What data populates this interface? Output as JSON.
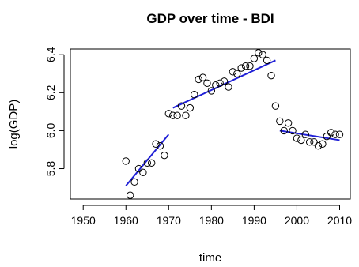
{
  "chart_data": {
    "type": "scatter",
    "title": "GDP over time - BDI",
    "xlabel": "time",
    "ylabel": "log(GDP)",
    "xlim": [
      1947,
      2012.5
    ],
    "ylim": [
      5.64,
      6.43
    ],
    "xticks": [
      1950,
      1960,
      1970,
      1980,
      1990,
      2000,
      2010
    ],
    "yticks": [
      5.8,
      6.0,
      6.2,
      6.4
    ],
    "grid": false,
    "legend": "none",
    "points": [
      {
        "x": 1960,
        "y": 5.84
      },
      {
        "x": 1961,
        "y": 5.66
      },
      {
        "x": 1962,
        "y": 5.73
      },
      {
        "x": 1963,
        "y": 5.8
      },
      {
        "x": 1964,
        "y": 5.78
      },
      {
        "x": 1965,
        "y": 5.83
      },
      {
        "x": 1966,
        "y": 5.83
      },
      {
        "x": 1967,
        "y": 5.93
      },
      {
        "x": 1968,
        "y": 5.92
      },
      {
        "x": 1969,
        "y": 5.87
      },
      {
        "x": 1970,
        "y": 6.09
      },
      {
        "x": 1971,
        "y": 6.08
      },
      {
        "x": 1972,
        "y": 6.08
      },
      {
        "x": 1973,
        "y": 6.13
      },
      {
        "x": 1974,
        "y": 6.08
      },
      {
        "x": 1975,
        "y": 6.12
      },
      {
        "x": 1976,
        "y": 6.19
      },
      {
        "x": 1977,
        "y": 6.27
      },
      {
        "x": 1978,
        "y": 6.28
      },
      {
        "x": 1979,
        "y": 6.25
      },
      {
        "x": 1980,
        "y": 6.21
      },
      {
        "x": 1981,
        "y": 6.24
      },
      {
        "x": 1982,
        "y": 6.25
      },
      {
        "x": 1983,
        "y": 6.26
      },
      {
        "x": 1984,
        "y": 6.23
      },
      {
        "x": 1985,
        "y": 6.31
      },
      {
        "x": 1986,
        "y": 6.3
      },
      {
        "x": 1987,
        "y": 6.33
      },
      {
        "x": 1988,
        "y": 6.34
      },
      {
        "x": 1989,
        "y": 6.34
      },
      {
        "x": 1990,
        "y": 6.38
      },
      {
        "x": 1991,
        "y": 6.41
      },
      {
        "x": 1992,
        "y": 6.4
      },
      {
        "x": 1993,
        "y": 6.37
      },
      {
        "x": 1994,
        "y": 6.29
      },
      {
        "x": 1995,
        "y": 6.13
      },
      {
        "x": 1996,
        "y": 6.05
      },
      {
        "x": 1997,
        "y": 6.0
      },
      {
        "x": 1998,
        "y": 6.04
      },
      {
        "x": 1999,
        "y": 6.0
      },
      {
        "x": 2000,
        "y": 5.96
      },
      {
        "x": 2001,
        "y": 5.95
      },
      {
        "x": 2002,
        "y": 5.98
      },
      {
        "x": 2003,
        "y": 5.94
      },
      {
        "x": 2004,
        "y": 5.94
      },
      {
        "x": 2005,
        "y": 5.92
      },
      {
        "x": 2006,
        "y": 5.93
      },
      {
        "x": 2007,
        "y": 5.97
      },
      {
        "x": 2008,
        "y": 5.99
      },
      {
        "x": 2009,
        "y": 5.98
      },
      {
        "x": 2010,
        "y": 5.98
      }
    ],
    "fit_lines": [
      {
        "x": [
          1960,
          1970
        ],
        "y": [
          5.71,
          5.98
        ]
      },
      {
        "x": [
          1971,
          1995
        ],
        "y": [
          6.12,
          6.37
        ]
      },
      {
        "x": [
          1996,
          2010
        ],
        "y": [
          6.0,
          5.95
        ]
      }
    ],
    "colors": {
      "points": "#000000",
      "fit_lines": "#1f1fd6",
      "axes": "#000000"
    }
  }
}
